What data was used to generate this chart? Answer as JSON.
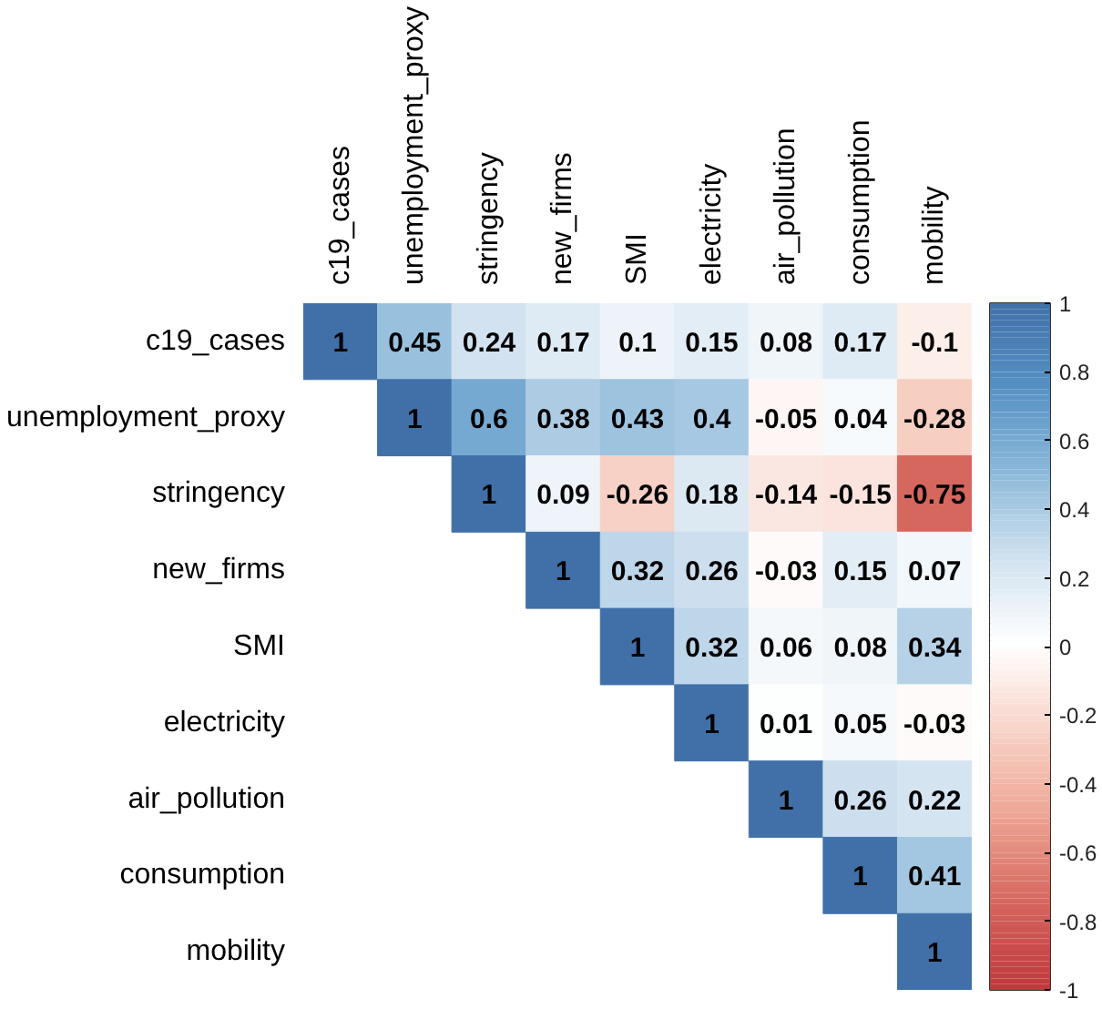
{
  "chart_data": {
    "type": "heatmap",
    "categories": [
      "c19_cases",
      "unemployment_proxy",
      "stringency",
      "new_firms",
      "SMI",
      "electricity",
      "air_pollution",
      "consumption",
      "mobility"
    ],
    "y_categories": [
      "c19_cases",
      "unemployment_proxy",
      "stringency",
      "new_firms",
      "SMI",
      "electricity",
      "air_pollution",
      "consumption",
      "mobility"
    ],
    "cells": [
      [
        1,
        0.45,
        0.24,
        0.17,
        0.1,
        0.15,
        0.08,
        0.17,
        -0.1
      ],
      [
        null,
        1,
        0.6,
        0.38,
        0.43,
        0.4,
        -0.05,
        0.04,
        -0.28
      ],
      [
        null,
        null,
        1,
        0.09,
        -0.26,
        0.18,
        -0.14,
        -0.15,
        -0.75
      ],
      [
        null,
        null,
        null,
        1,
        0.32,
        0.26,
        -0.03,
        0.15,
        0.07
      ],
      [
        null,
        null,
        null,
        null,
        1,
        0.32,
        0.06,
        0.08,
        0.34
      ],
      [
        null,
        null,
        null,
        null,
        null,
        1,
        0.01,
        0.05,
        -0.03
      ],
      [
        null,
        null,
        null,
        null,
        null,
        null,
        1,
        0.26,
        0.22
      ],
      [
        null,
        null,
        null,
        null,
        null,
        null,
        null,
        1,
        0.41
      ],
      [
        null,
        null,
        null,
        null,
        null,
        null,
        null,
        null,
        1
      ]
    ],
    "clim": [
      -1,
      1
    ],
    "cticks": [
      -1,
      -0.8,
      -0.6,
      -0.4,
      -0.2,
      0,
      0.2,
      0.4,
      0.6,
      0.8,
      1
    ],
    "data_labels": true
  }
}
